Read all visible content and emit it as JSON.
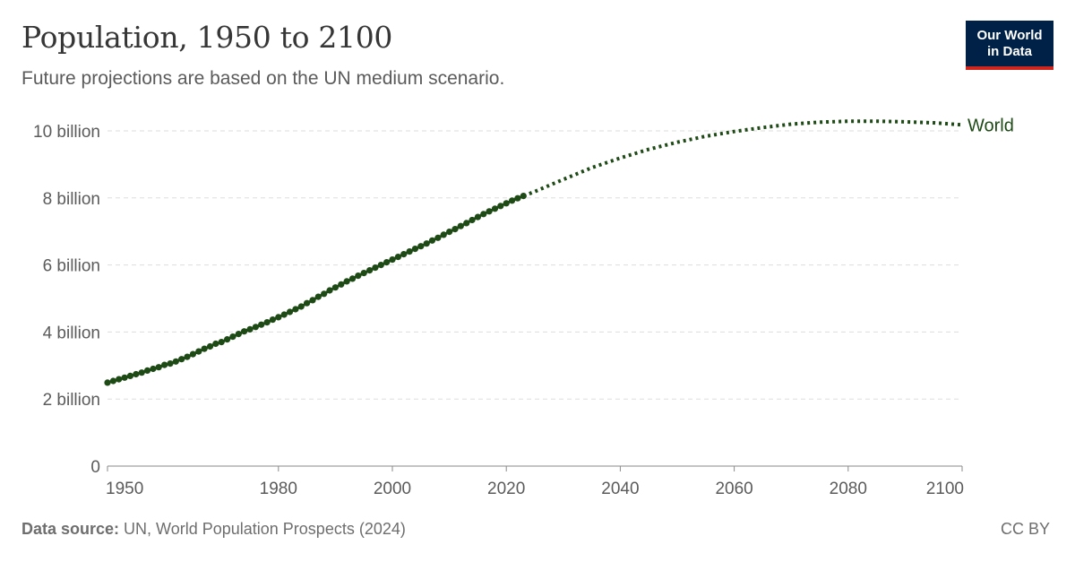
{
  "header": {
    "title": "Population, 1950 to 2100",
    "subtitle": "Future projections are based on the UN medium scenario."
  },
  "logo": {
    "line1": "Our World",
    "line2": "in Data"
  },
  "footer": {
    "source_label": "Data source:",
    "source_text": " UN, World Population Prospects (2024)",
    "license": "CC BY"
  },
  "colors": {
    "series": "#1e4a16",
    "grid": "#dddddd",
    "axis": "#8a8a8a",
    "tick_text": "#5b5b5b",
    "logo_bg": "#002147",
    "logo_accent": "#ce261e"
  },
  "chart_data": {
    "type": "line",
    "title": "Population, 1950 to 2100",
    "subtitle": "Future projections are based on the UN medium scenario.",
    "xlabel": "",
    "ylabel": "",
    "xlim": [
      1950,
      2100
    ],
    "ylim": [
      0,
      10
    ],
    "x_ticks": [
      1950,
      1980,
      2000,
      2020,
      2040,
      2060,
      2080,
      2100
    ],
    "y_ticks": [
      {
        "value": 0,
        "label": "0"
      },
      {
        "value": 2,
        "label": "2 billion"
      },
      {
        "value": 4,
        "label": "4 billion"
      },
      {
        "value": 6,
        "label": "6 billion"
      },
      {
        "value": 8,
        "label": "8 billion"
      },
      {
        "value": 10,
        "label": "10 billion"
      }
    ],
    "grid": "horizontal dashed",
    "series": [
      {
        "name": "World",
        "unit": "billion",
        "historical": {
          "x": [
            1950,
            1951,
            1952,
            1953,
            1954,
            1955,
            1956,
            1957,
            1958,
            1959,
            1960,
            1961,
            1962,
            1963,
            1964,
            1965,
            1966,
            1967,
            1968,
            1969,
            1970,
            1971,
            1972,
            1973,
            1974,
            1975,
            1976,
            1977,
            1978,
            1979,
            1980,
            1981,
            1982,
            1983,
            1984,
            1985,
            1986,
            1987,
            1988,
            1989,
            1990,
            1991,
            1992,
            1993,
            1994,
            1995,
            1996,
            1997,
            1998,
            1999,
            2000,
            2001,
            2002,
            2003,
            2004,
            2005,
            2006,
            2007,
            2008,
            2009,
            2010,
            2011,
            2012,
            2013,
            2014,
            2015,
            2016,
            2017,
            2018,
            2019,
            2020,
            2021,
            2022,
            2023
          ],
          "y": [
            2.49,
            2.54,
            2.59,
            2.64,
            2.69,
            2.74,
            2.79,
            2.85,
            2.9,
            2.95,
            3.02,
            3.06,
            3.12,
            3.19,
            3.26,
            3.34,
            3.42,
            3.5,
            3.57,
            3.65,
            3.7,
            3.78,
            3.86,
            3.94,
            4.02,
            4.08,
            4.15,
            4.22,
            4.29,
            4.37,
            4.44,
            4.52,
            4.6,
            4.68,
            4.76,
            4.86,
            4.95,
            5.05,
            5.14,
            5.24,
            5.33,
            5.42,
            5.51,
            5.59,
            5.68,
            5.76,
            5.84,
            5.92,
            6.0,
            6.08,
            6.16,
            6.24,
            6.32,
            6.4,
            6.48,
            6.56,
            6.64,
            6.73,
            6.81,
            6.9,
            6.99,
            7.07,
            7.16,
            7.25,
            7.34,
            7.43,
            7.52,
            7.6,
            7.68,
            7.76,
            7.84,
            7.92,
            7.99,
            8.06
          ]
        },
        "projection": {
          "x": [
            2023,
            2025,
            2030,
            2035,
            2040,
            2045,
            2050,
            2055,
            2060,
            2065,
            2070,
            2075,
            2080,
            2085,
            2090,
            2095,
            2100
          ],
          "y": [
            8.06,
            8.19,
            8.55,
            8.9,
            9.19,
            9.45,
            9.66,
            9.84,
            9.98,
            10.1,
            10.2,
            10.26,
            10.29,
            10.29,
            10.27,
            10.24,
            10.18
          ]
        }
      }
    ]
  }
}
